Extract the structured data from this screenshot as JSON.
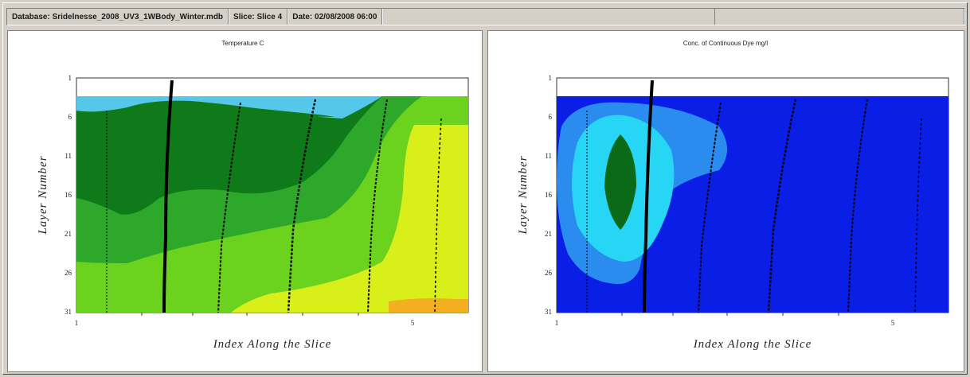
{
  "status": {
    "database_label": "Database:",
    "database_value": "Sridelnesse_2008_UV3_1WBody_Winter.mdb",
    "slice_label": "Slice:",
    "slice_value": "Slice 4",
    "date_label": "Date:",
    "date_value": "02/08/2008 06:00"
  },
  "plots": [
    {
      "title": "Temperature C",
      "ylabel": "Layer Number",
      "xlabel": "Index Along the Slice",
      "y_ticks": [
        "1",
        "6",
        "11",
        "16",
        "21",
        "26",
        "31"
      ],
      "x_ticks": [
        "1",
        "5"
      ]
    },
    {
      "title": "Conc. of Continuous Dye mg/l",
      "ylabel": "Layer Number",
      "xlabel": "Index Along the Slice",
      "y_ticks": [
        "1",
        "6",
        "11",
        "16",
        "21",
        "26",
        "31"
      ],
      "x_ticks": [
        "1",
        "5"
      ]
    }
  ],
  "colors": {
    "temp_band_1": "#55c8ea",
    "temp_band_2": "#0f7a1a",
    "temp_band_3": "#2ea82a",
    "temp_band_4": "#6bd21e",
    "temp_band_5": "#d8ef1a",
    "temp_band_6": "#f2b020",
    "dye_background": "#0b1ee6",
    "dye_band_1": "#2b8cf0",
    "dye_band_2": "#27d6f5",
    "dye_core": "#0b6a17"
  }
}
